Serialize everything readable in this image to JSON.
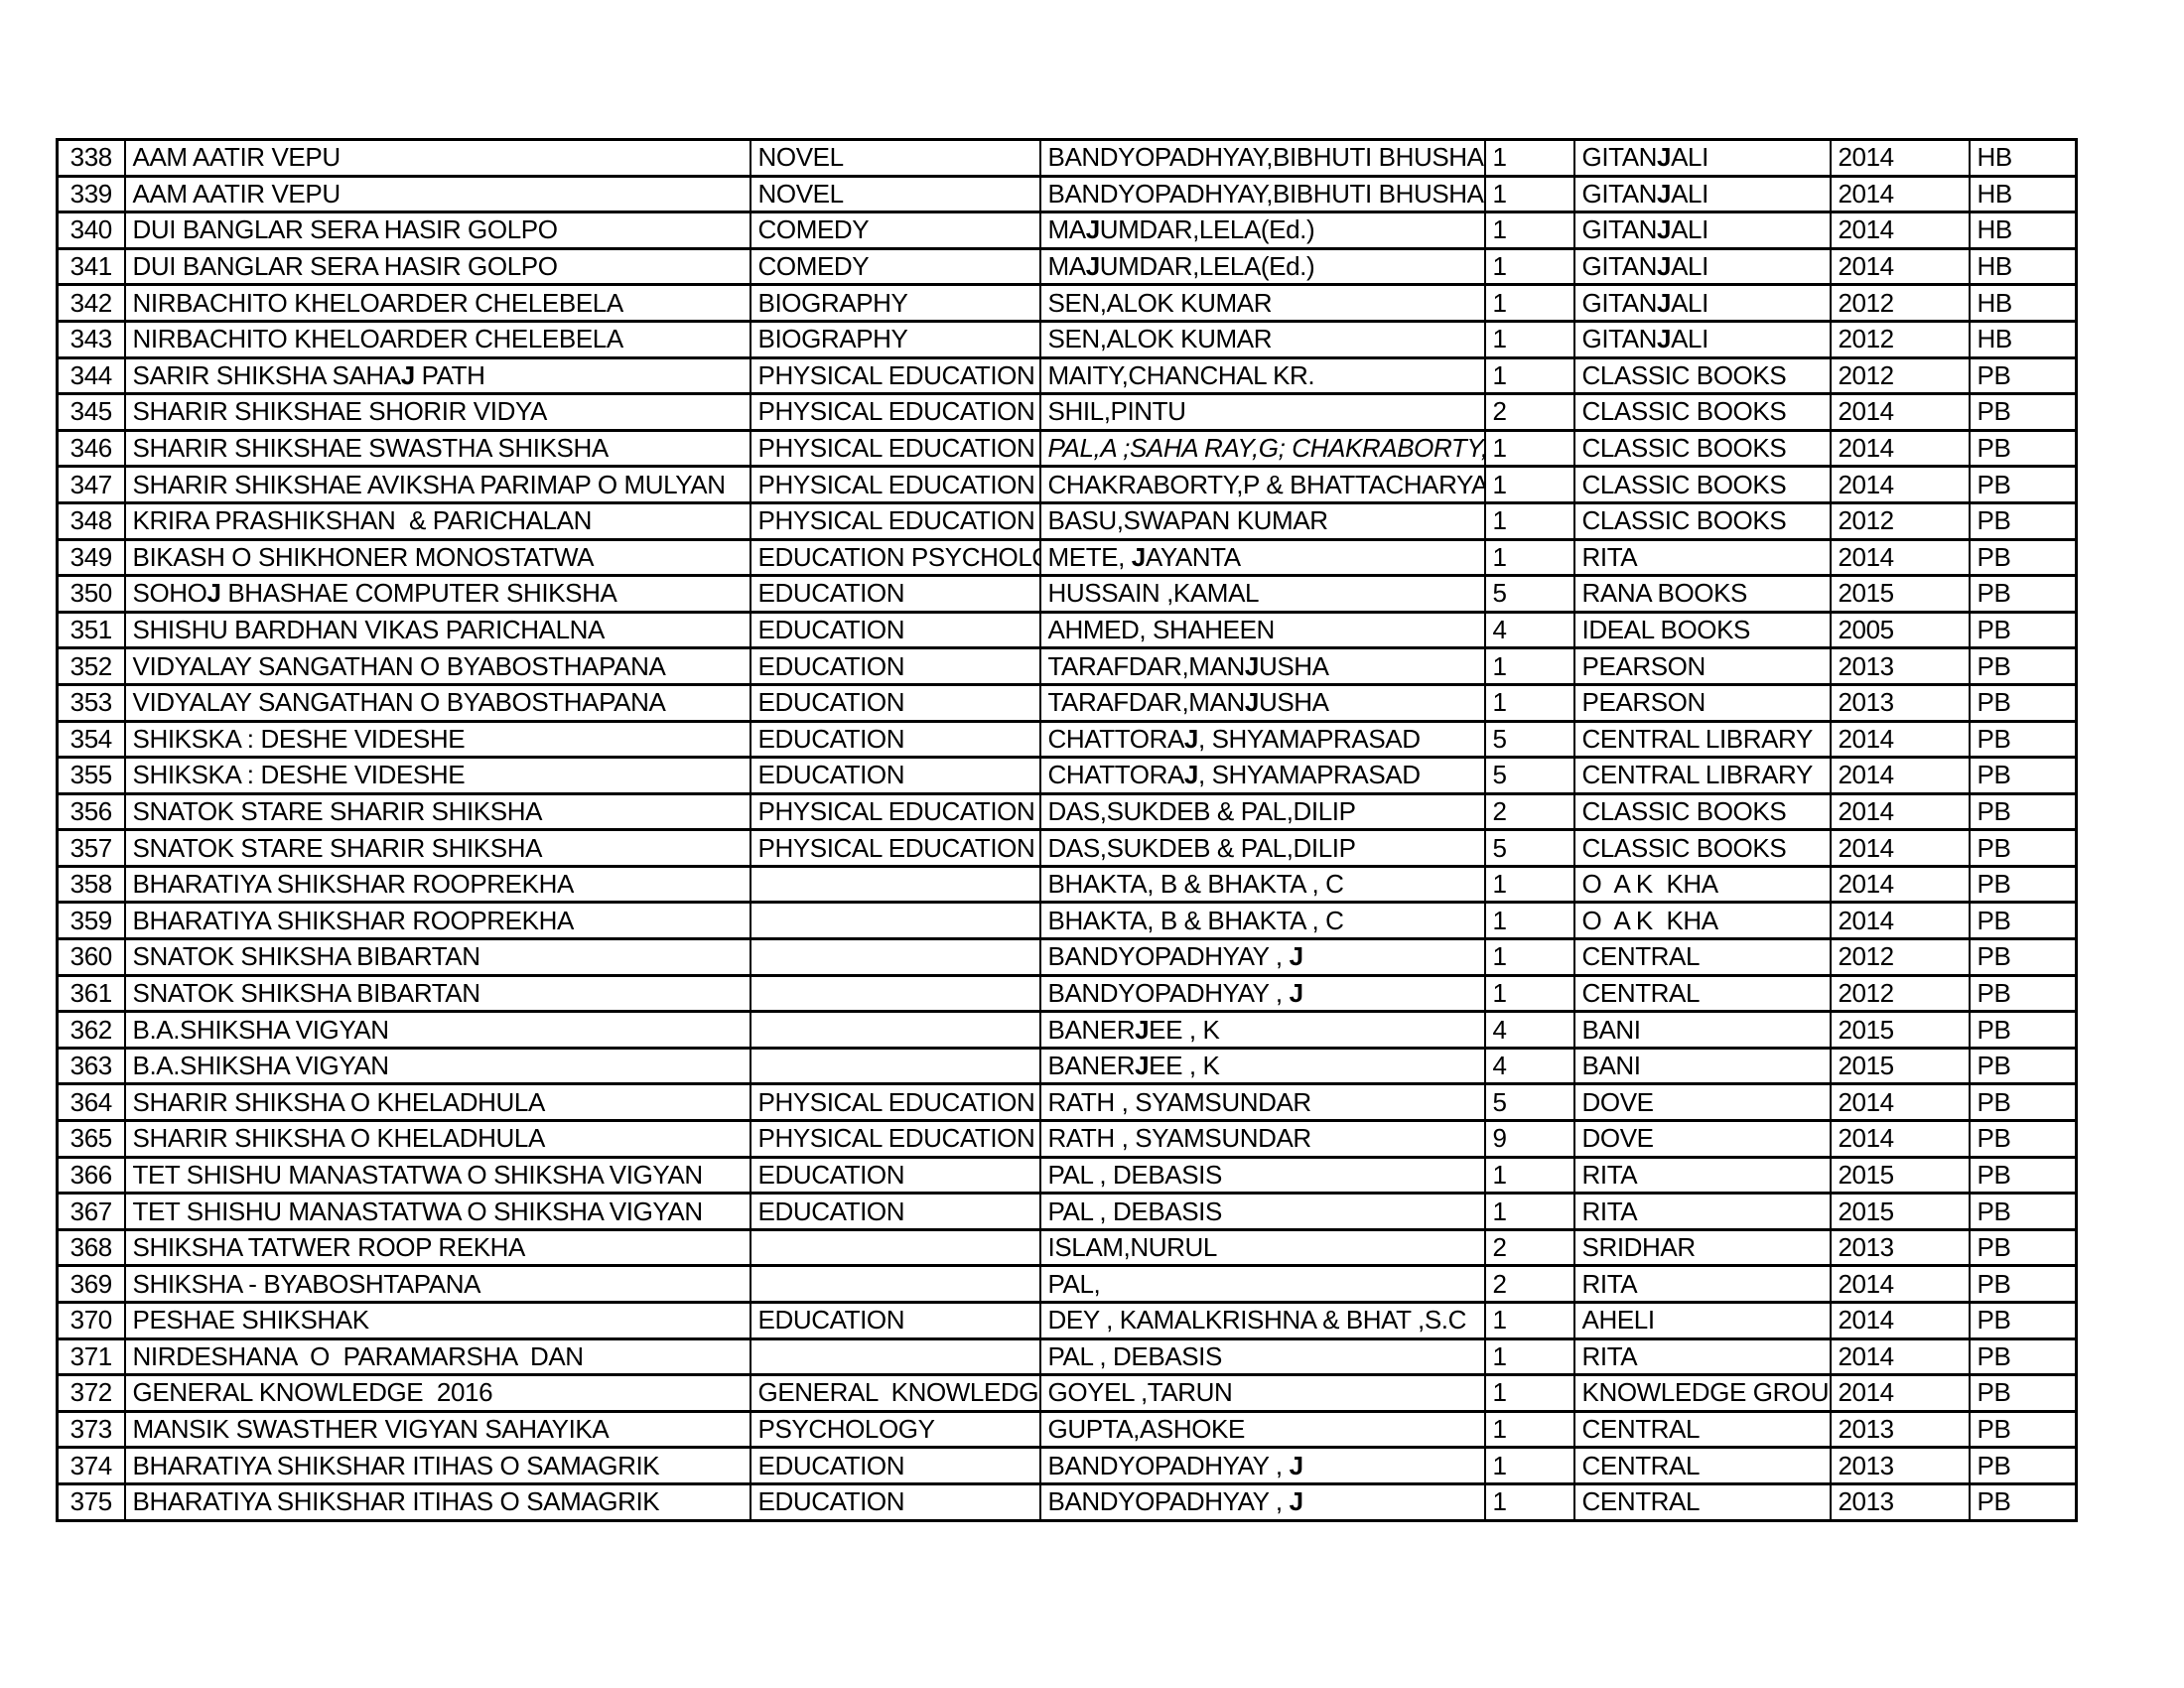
{
  "page": {
    "background_color": "#ffffff",
    "border_color": "#000000",
    "text_color": "#000000"
  },
  "table": {
    "rows": [
      {
        "no": "338",
        "title": "AAM AATIR VEPU",
        "category": "NOVEL",
        "author": "BANDYOPADHYAY,BIBHUTI BHUSHAN",
        "qty": "1",
        "publisher": "GITANJALI",
        "year": "2014",
        "binding": "HB"
      },
      {
        "no": "339",
        "title": "AAM AATIR VEPU",
        "category": "NOVEL",
        "author": "BANDYOPADHYAY,BIBHUTI BHUSHAN",
        "qty": "1",
        "publisher": "GITANJALI",
        "year": "2014",
        "binding": "HB"
      },
      {
        "no": "340",
        "title": "DUI BANGLAR SERA HASIR GOLPO",
        "category": "COMEDY",
        "author": "MAJUMDAR,LELA(Ed.)",
        "qty": "1",
        "publisher": "GITANJALI",
        "year": "2014",
        "binding": "HB"
      },
      {
        "no": "341",
        "title": "DUI BANGLAR SERA HASIR GOLPO",
        "category": "COMEDY",
        "author": "MAJUMDAR,LELA(Ed.)",
        "qty": "1",
        "publisher": "GITANJALI",
        "year": "2014",
        "binding": "HB"
      },
      {
        "no": "342",
        "title": "NIRBACHITO KHELOARDER CHELEBELA",
        "category": "BIOGRAPHY",
        "author": "SEN,ALOK KUMAR",
        "qty": "1",
        "publisher": "GITANJALI",
        "year": "2012",
        "binding": "HB"
      },
      {
        "no": "343",
        "title": "NIRBACHITO KHELOARDER CHELEBELA",
        "category": "BIOGRAPHY",
        "author": "SEN,ALOK KUMAR",
        "qty": "1",
        "publisher": "GITANJALI",
        "year": "2012",
        "binding": "HB"
      },
      {
        "no": "344",
        "title": "SARIR SHIKSHA SAHAJ PATH",
        "category": "PHYSICAL EDUCATION",
        "author": "MAITY,CHANCHAL KR.",
        "qty": "1",
        "publisher": "CLASSIC BOOKS",
        "year": "2012",
        "binding": "PB"
      },
      {
        "no": "345",
        "title": "SHARIR SHIKSHAE SHORIR VIDYA",
        "category": "PHYSICAL EDUCATION",
        "author": "SHIL,PINTU",
        "qty": "2",
        "publisher": "CLASSIC BOOKS",
        "year": "2014",
        "binding": "PB"
      },
      {
        "no": "346",
        "title": "SHARIR SHIKSHAE SWASTHA SHIKSHA",
        "category": "PHYSICAL EDUCATION",
        "author": "PAL,A ;SAHA RAY,G; CHAKRABORTY,M",
        "author_italic": true,
        "qty": "1",
        "publisher": "CLASSIC BOOKS",
        "year": "2014",
        "binding": "PB"
      },
      {
        "no": "347",
        "title": "SHARIR SHIKSHAE AVIKSHA PARIMAP O MULYAN",
        "category": "PHYSICAL EDUCATION",
        "author": "CHAKRABORTY,P & BHATTACHARYA ,S",
        "qty": "1",
        "publisher": "CLASSIC BOOKS",
        "year": "2014",
        "binding": "PB"
      },
      {
        "no": "348",
        "title": "KRIRA PRASHIKSHAN  & PARICHALAN",
        "category": "PHYSICAL EDUCATION",
        "author": "BASU,SWAPAN KUMAR",
        "qty": "1",
        "publisher": "CLASSIC BOOKS",
        "year": "2012",
        "binding": "PB"
      },
      {
        "no": "349",
        "title": "BIKASH O SHIKHONER MONOSTATWA",
        "category": "EDUCATION PSYCHOLOGY",
        "author": "METE, JAYANTA",
        "qty": "1",
        "publisher": "RITA",
        "year": "2014",
        "binding": "PB"
      },
      {
        "no": "350",
        "title": "SOHOJ BHASHAE COMPUTER SHIKSHA",
        "category": "EDUCATION",
        "author": "HUSSAIN ,KAMAL",
        "qty": "5",
        "publisher": "RANA BOOKS",
        "year": "2015",
        "binding": "PB"
      },
      {
        "no": "351",
        "title": "SHISHU BARDHAN VIKAS PARICHALNA",
        "category": "EDUCATION",
        "author": "AHMED, SHAHEEN",
        "qty": "4",
        "publisher": "IDEAL BOOKS",
        "year": "2005",
        "binding": "PB"
      },
      {
        "no": "352",
        "title": "VIDYALAY SANGATHAN O BYABOSTHAPANA",
        "category": "EDUCATION",
        "author": "TARAFDAR,MANJUSHA",
        "qty": "1",
        "publisher": "PEARSON",
        "year": "2013",
        "binding": "PB"
      },
      {
        "no": "353",
        "title": "VIDYALAY SANGATHAN O BYABOSTHAPANA",
        "category": "EDUCATION",
        "author": "TARAFDAR,MANJUSHA",
        "qty": "1",
        "publisher": "PEARSON",
        "year": "2013",
        "binding": "PB"
      },
      {
        "no": "354",
        "title": "SHIKSKA : DESHE VIDESHE",
        "category": "EDUCATION",
        "author": "CHATTORAJ, SHYAMAPRASAD",
        "qty": "5",
        "publisher": "CENTRAL LIBRARY",
        "year": "2014",
        "binding": "PB"
      },
      {
        "no": "355",
        "title": "SHIKSKA : DESHE VIDESHE",
        "category": "EDUCATION",
        "author": "CHATTORAJ, SHYAMAPRASAD",
        "qty": "5",
        "publisher": "CENTRAL LIBRARY",
        "year": "2014",
        "binding": "PB"
      },
      {
        "no": "356",
        "title": "SNATOK STARE SHARIR SHIKSHA",
        "category": "PHYSICAL EDUCATION",
        "author": "DAS,SUKDEB & PAL,DILIP",
        "qty": "2",
        "publisher": "CLASSIC BOOKS",
        "year": "2014",
        "binding": "PB"
      },
      {
        "no": "357",
        "title": "SNATOK STARE SHARIR SHIKSHA",
        "category": "PHYSICAL EDUCATION",
        "author": "DAS,SUKDEB & PAL,DILIP",
        "qty": "5",
        "publisher": "CLASSIC BOOKS",
        "year": "2014",
        "binding": "PB"
      },
      {
        "no": "358",
        "title": "BHARATIYA SHIKSHAR ROOPREKHA",
        "category": "",
        "author": "BHAKTA, B & BHAKTA , C",
        "qty": "1",
        "publisher": "O  A K  KHA",
        "year": "2014",
        "binding": "PB"
      },
      {
        "no": "359",
        "title": "BHARATIYA SHIKSHAR ROOPREKHA",
        "category": "",
        "author": "BHAKTA, B & BHAKTA , C",
        "qty": "1",
        "publisher": "O  A K  KHA",
        "year": "2014",
        "binding": "PB"
      },
      {
        "no": "360",
        "title": "SNATOK SHIKSHA BIBARTAN",
        "category": "",
        "author": "BANDYOPADHYAY , J",
        "qty": "1",
        "publisher": "CENTRAL",
        "year": "2012",
        "binding": "PB"
      },
      {
        "no": "361",
        "title": "SNATOK SHIKSHA BIBARTAN",
        "category": "",
        "author": "BANDYOPADHYAY , J",
        "qty": "1",
        "publisher": "CENTRAL",
        "year": "2012",
        "binding": "PB"
      },
      {
        "no": "362",
        "title": "B.A.SHIKSHA VIGYAN",
        "category": "",
        "author": "BANERJEE , K",
        "qty": "4",
        "publisher": "BANI",
        "year": "2015",
        "binding": "PB"
      },
      {
        "no": "363",
        "title": "B.A.SHIKSHA VIGYAN",
        "category": "",
        "author": "BANERJEE , K",
        "qty": "4",
        "publisher": "BANI",
        "year": "2015",
        "binding": "PB"
      },
      {
        "no": "364",
        "title": "SHARIR SHIKSHA O KHELADHULA",
        "category": "PHYSICAL EDUCATION",
        "author": "RATH , SYAMSUNDAR",
        "qty": "5",
        "publisher": "DOVE",
        "year": "2014",
        "binding": "PB"
      },
      {
        "no": "365",
        "title": "SHARIR SHIKSHA O KHELADHULA",
        "category": "PHYSICAL EDUCATION",
        "author": "RATH , SYAMSUNDAR",
        "qty": "9",
        "publisher": "DOVE",
        "year": "2014",
        "binding": "PB"
      },
      {
        "no": "366",
        "title": "TET SHISHU MANASTATWA O SHIKSHA VIGYAN",
        "category": "EDUCATION",
        "author": "PAL , DEBASIS",
        "qty": "1",
        "publisher": "RITA",
        "year": "2015",
        "binding": "PB"
      },
      {
        "no": "367",
        "title": "TET SHISHU MANASTATWA O SHIKSHA VIGYAN",
        "category": "EDUCATION",
        "author": "PAL , DEBASIS",
        "qty": "1",
        "publisher": "RITA",
        "year": "2015",
        "binding": "PB"
      },
      {
        "no": "368",
        "title": "SHIKSHA TATWER ROOP REKHA",
        "category": "",
        "author": "ISLAM,NURUL",
        "qty": "2",
        "publisher": "SRIDHAR",
        "year": "2013",
        "binding": "PB"
      },
      {
        "no": "369",
        "title": "SHIKSHA - BYABOSHTAPANA",
        "category": "",
        "author": "PAL,",
        "qty": "2",
        "publisher": "RITA",
        "year": "2014",
        "binding": "PB"
      },
      {
        "no": "370",
        "title": "PESHAE SHIKSHAK",
        "category": "EDUCATION",
        "author": "DEY , KAMALKRISHNA & BHAT ,S.C",
        "qty": "1",
        "publisher": "AHELI",
        "year": "2014",
        "binding": "PB"
      },
      {
        "no": "371",
        "title": "NIRDESHANA  O  PARAMARSHA  DAN",
        "category": "",
        "author": "PAL , DEBASIS",
        "qty": "1",
        "publisher": "RITA",
        "year": "2014",
        "binding": "PB"
      },
      {
        "no": "372",
        "title": "GENERAL KNOWLEDGE  2016",
        "category": "GENERAL  KNOWLEDGE",
        "author": "GOYEL ,TARUN",
        "qty": "1",
        "publisher": "KNOWLEDGE GROUP",
        "year": "2014",
        "binding": "PB"
      },
      {
        "no": "373",
        "title": "MANSIK SWASTHER VIGYAN SAHAYIKA",
        "category": "PSYCHOLOGY",
        "author": "GUPTA,ASHOKE",
        "qty": "1",
        "publisher": "CENTRAL",
        "year": "2013",
        "binding": "PB"
      },
      {
        "no": "374",
        "title": "BHARATIYA SHIKSHAR ITIHAS O SAMAGRIK",
        "category": "EDUCATION",
        "author": "BANDYOPADHYAY , J",
        "qty": "1",
        "publisher": "CENTRAL",
        "year": "2013",
        "binding": "PB"
      },
      {
        "no": "375",
        "title": "BHARATIYA SHIKSHAR ITIHAS O SAMAGRIK",
        "category": "EDUCATION",
        "author": "BANDYOPADHYAY , J",
        "qty": "1",
        "publisher": "CENTRAL",
        "year": "2013",
        "binding": "PB"
      }
    ]
  }
}
